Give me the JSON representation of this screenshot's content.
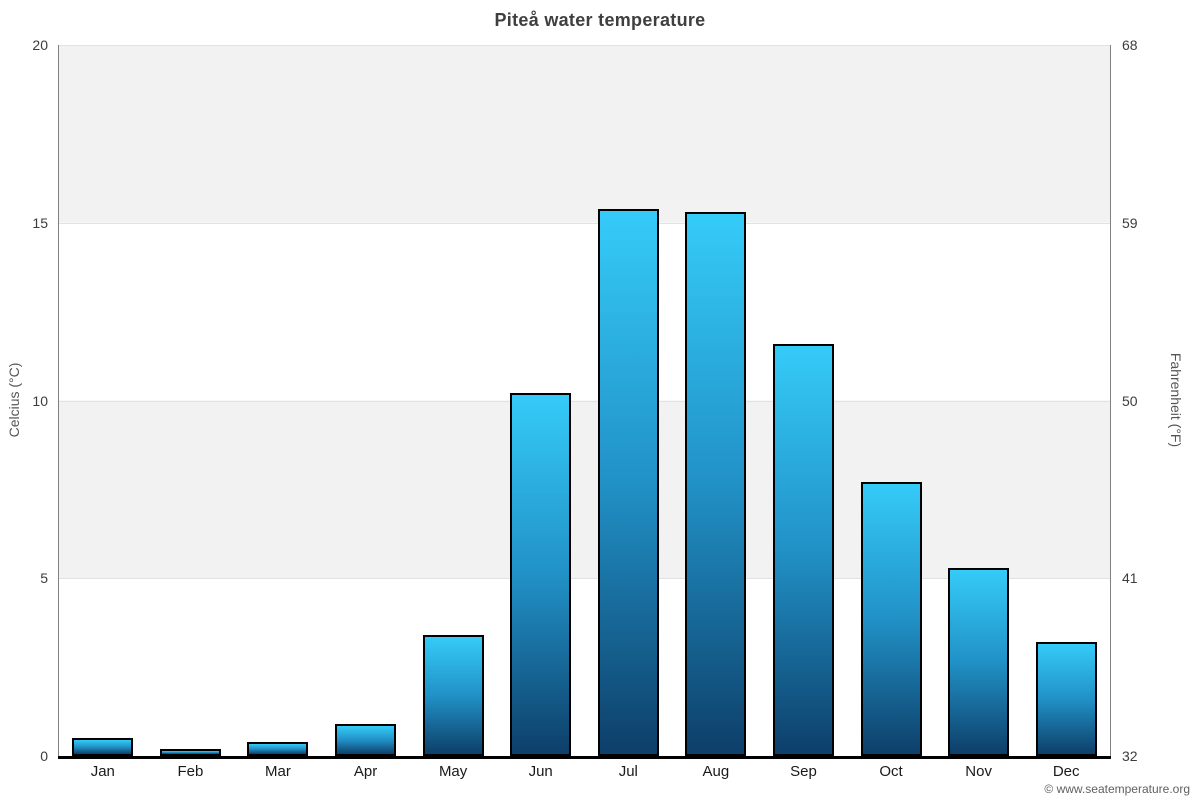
{
  "title": "Piteå water temperature",
  "credit": "© www.seatemperature.org",
  "colors": {
    "background": "#ffffff",
    "band_shaded": "#f2f2f2",
    "band_plain": "#ffffff",
    "gridline": "#e2e2e2",
    "axis_line": "#808080",
    "baseline": "#000000",
    "bar_border": "#000000",
    "bar_gradient_top": "#35cbf8",
    "bar_gradient_mid": "#2191c6",
    "bar_gradient_bottom": "#0d3f69",
    "title_color": "#3f3f3f",
    "tick_color": "#3c3c3c",
    "axis_title_color": "#555555",
    "credit_color": "#606060"
  },
  "chart_data": {
    "type": "bar",
    "title": "Piteå water temperature",
    "subtitle": "",
    "categories": [
      "Jan",
      "Feb",
      "Mar",
      "Apr",
      "May",
      "Jun",
      "Jul",
      "Aug",
      "Sep",
      "Oct",
      "Nov",
      "Dec"
    ],
    "series": [
      {
        "name": "Water temperature (°C)",
        "values": [
          0.5,
          0.2,
          0.4,
          0.9,
          3.4,
          10.2,
          15.4,
          15.3,
          11.6,
          7.7,
          5.3,
          3.2
        ]
      }
    ],
    "values_fahrenheit": [
      32.9,
      32.4,
      32.7,
      33.6,
      38.1,
      50.4,
      59.7,
      59.5,
      52.9,
      45.9,
      41.5,
      37.8
    ],
    "xlabel": "",
    "ylabel_left": "Celcius (°C)",
    "ylabel_right": "Fahrenheit (°F)",
    "yticks_celsius": [
      0,
      5,
      10,
      15,
      20
    ],
    "yticks_fahrenheit": [
      32,
      41,
      50,
      59,
      68
    ],
    "ylim_celsius": [
      0,
      20
    ],
    "ylim_fahrenheit": [
      32,
      68
    ],
    "grid": "horizontal lines at 5°C intervals with alternating shaded bands (15–20 and 5–10 shaded)",
    "legend": "none"
  }
}
